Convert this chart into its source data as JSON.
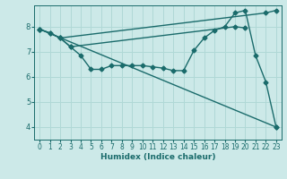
{
  "xlabel": "Humidex (Indice chaleur)",
  "background_color": "#cce9e8",
  "grid_color": "#b0d8d6",
  "line_color": "#1a6b6b",
  "marker": "D",
  "markersize": 2.5,
  "linewidth": 1.0,
  "xlim": [
    -0.5,
    23.5
  ],
  "ylim": [
    3.5,
    8.85
  ],
  "yticks": [
    4,
    5,
    6,
    7,
    8
  ],
  "xticks": [
    0,
    1,
    2,
    3,
    4,
    5,
    6,
    7,
    8,
    9,
    10,
    11,
    12,
    13,
    14,
    15,
    16,
    17,
    18,
    19,
    20,
    21,
    22,
    23
  ],
  "series": [
    {
      "x": [
        0,
        1,
        2,
        22,
        23
      ],
      "y": [
        7.9,
        7.75,
        7.55,
        8.55,
        8.65
      ]
    },
    {
      "x": [
        0,
        23
      ],
      "y": [
        7.9,
        4.0
      ]
    },
    {
      "x": [
        2,
        3,
        4,
        5,
        6,
        7,
        8,
        9,
        10,
        11,
        12,
        13,
        14,
        15,
        16,
        17,
        18,
        19,
        20,
        21,
        22,
        23
      ],
      "y": [
        7.55,
        7.2,
        6.85,
        6.3,
        6.3,
        6.45,
        6.45,
        6.45,
        6.45,
        6.4,
        6.35,
        6.25,
        6.25,
        7.05,
        7.55,
        7.85,
        8.0,
        8.55,
        8.65,
        6.85,
        5.8,
        4.0
      ]
    },
    {
      "x": [
        0,
        1,
        2,
        3,
        19,
        20
      ],
      "y": [
        7.9,
        7.75,
        7.55,
        7.2,
        8.0,
        7.95
      ]
    }
  ]
}
